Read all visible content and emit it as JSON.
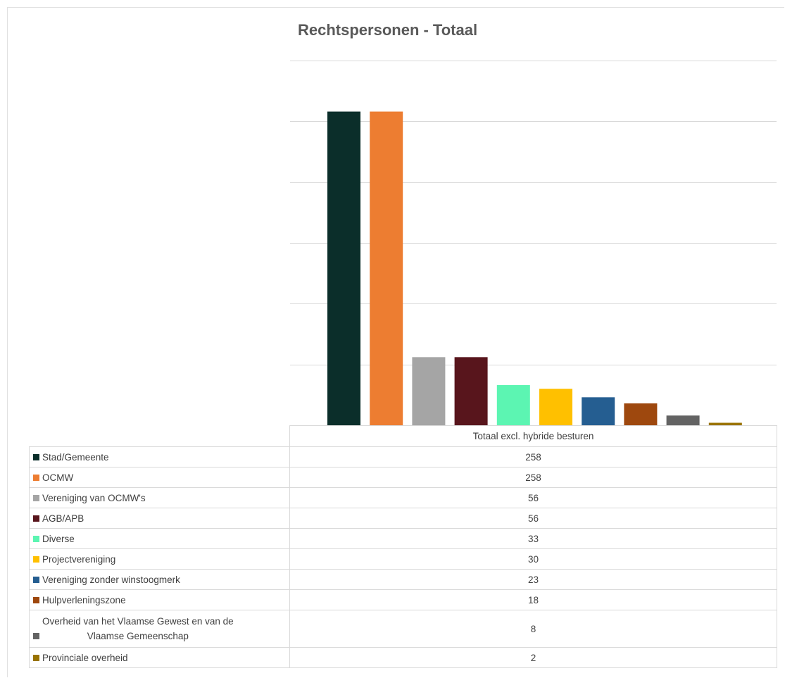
{
  "chart_data": {
    "type": "bar",
    "title": "Rechtspersonen - Totaal",
    "xlabel": "",
    "ylabel": "",
    "categories": [
      "Totaal excl. hybride besturen"
    ],
    "ylim": [
      0,
      300
    ],
    "grid": true,
    "legend": "table-bottom",
    "series": [
      {
        "name": "Stad/Gemeente",
        "values": [
          258
        ],
        "color": "#0b2e2a"
      },
      {
        "name": "OCMW",
        "values": [
          258
        ],
        "color": "#ed7d31"
      },
      {
        "name": "Vereniging van OCMW's",
        "values": [
          56
        ],
        "color": "#a5a5a5"
      },
      {
        "name": "AGB/APB",
        "values": [
          56
        ],
        "color": "#58151c"
      },
      {
        "name": "Diverse",
        "values": [
          33
        ],
        "color": "#5cf5b2"
      },
      {
        "name": "Projectvereniging",
        "values": [
          30
        ],
        "color": "#ffc000"
      },
      {
        "name": "Vereniging zonder winstoogmerk",
        "values": [
          23
        ],
        "color": "#255e91"
      },
      {
        "name": "Hulpverleningszone",
        "values": [
          18
        ],
        "color": "#9e480e"
      },
      {
        "name": "Overheid van het Vlaamse Gewest en van de Vlaamse Gemeenschap",
        "values": [
          8
        ],
        "color": "#636363"
      },
      {
        "name": "Provinciale overheid",
        "values": [
          2
        ],
        "color": "#997300"
      }
    ]
  },
  "table": {
    "header": "Totaal excl. hybride besturen",
    "row8_line1": "Overheid van het Vlaamse Gewest en van de",
    "row8_line2": "Vlaamse Gemeenschap"
  }
}
